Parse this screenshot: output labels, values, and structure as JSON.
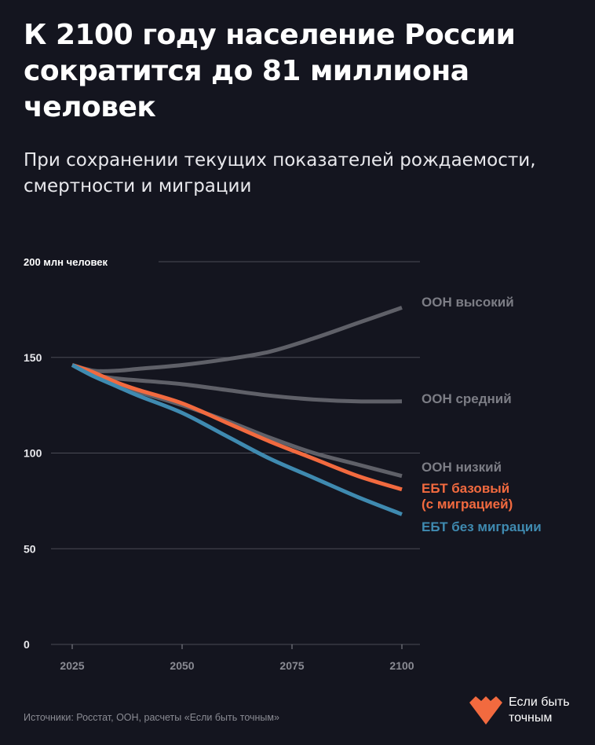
{
  "header": {
    "title": "К 2100 году население России сократится до 81 миллиона человек",
    "subtitle": "При сохранении текущих показателей рождаемости, смертности и миграции"
  },
  "chart_data": {
    "type": "line",
    "ylabel": "200 млн человек",
    "ylim": [
      0,
      200
    ],
    "xlim": [
      2025,
      2100
    ],
    "x_ticks": [
      "2025",
      "2050",
      "2075",
      "2100"
    ],
    "y_ticks": [
      "0",
      "50",
      "100",
      "150"
    ],
    "grid": true,
    "x": [
      2025,
      2030,
      2035,
      2040,
      2050,
      2060,
      2070,
      2080,
      2090,
      2100
    ],
    "series": [
      {
        "name": "ООН высокий",
        "color": "#5f6068",
        "label_color": "#7c7d85",
        "values": [
          146,
          143,
          143,
          144,
          146,
          149,
          153,
          160,
          168,
          176
        ]
      },
      {
        "name": "ООН средний",
        "color": "#5f6068",
        "label_color": "#7c7d85",
        "values": [
          146,
          141,
          139,
          138,
          136,
          133,
          130,
          128,
          127,
          127
        ]
      },
      {
        "name": "ООН низкий",
        "color": "#5f6068",
        "label_color": "#7c7d85",
        "values": [
          146,
          140,
          136,
          132,
          125,
          117,
          108,
          100,
          94,
          88
        ]
      },
      {
        "name": "ЕБТ базовый\n(с миграцией)",
        "color": "#f26a3f",
        "label_color": "#f26a3f",
        "values": [
          146,
          142,
          137,
          133,
          126,
          116,
          106,
          97,
          88,
          81
        ]
      },
      {
        "name": "ЕБТ без миграции",
        "color": "#3f8ab0",
        "label_color": "#3f8ab0",
        "values": [
          146,
          140,
          135,
          130,
          121,
          109,
          97,
          87,
          77,
          68
        ]
      }
    ]
  },
  "footer": {
    "source": "Источники:  Росстат, ООН, расчеты «Если быть точным»",
    "logo_line1": "Если быть",
    "logo_line2": "точным",
    "logo_color": "#f26a3f"
  }
}
